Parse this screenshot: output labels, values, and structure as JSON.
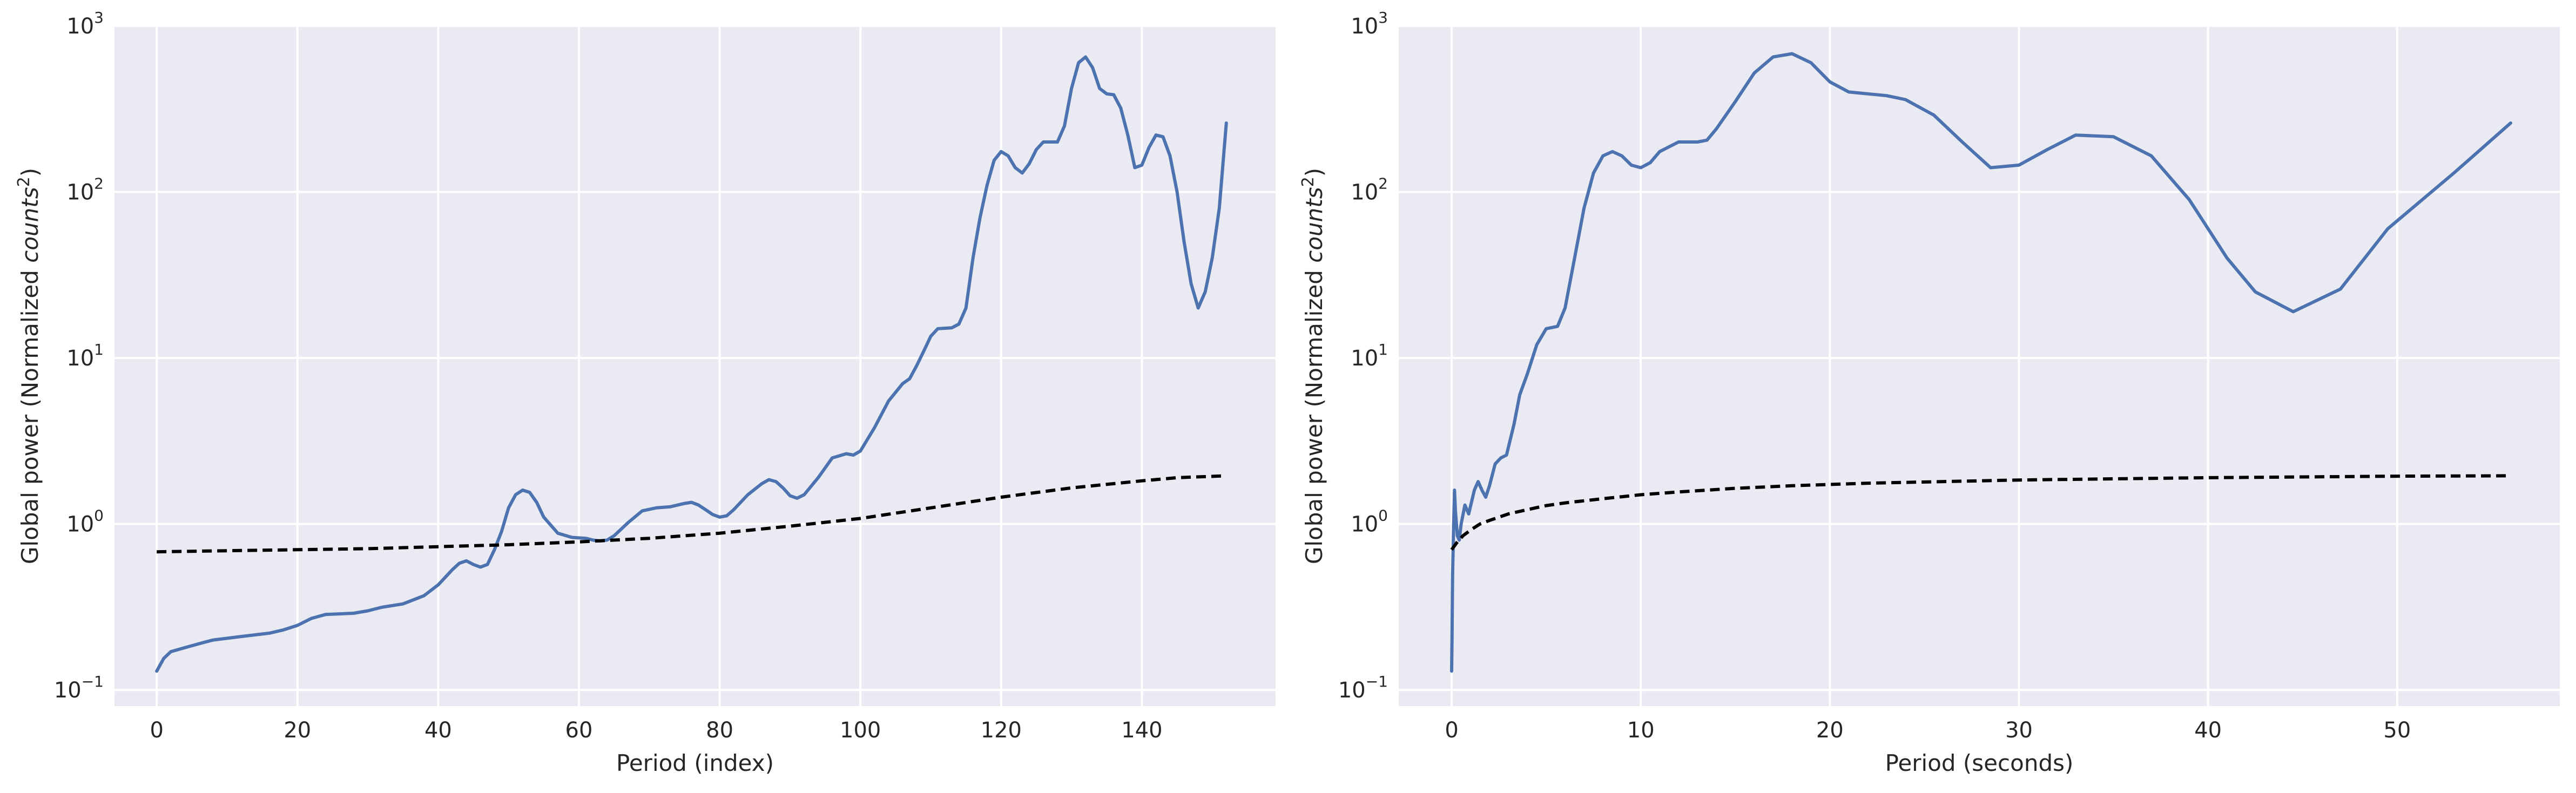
{
  "colors": {
    "axes_background": "#eaeaf2",
    "grid": "#ffffff",
    "series_power": "#4c72b0",
    "series_significance": "#000000"
  },
  "chart_data": [
    {
      "type": "line",
      "title": "",
      "xlabel": "Period (index)",
      "ylabel_prefix": "Global power (Normalized ",
      "ylabel_italic": "counts",
      "ylabel_sup": "2",
      "ylabel_suffix": ")",
      "xlim": [
        -6,
        159
      ],
      "ylim": [
        0.08,
        1000
      ],
      "yscale": "log",
      "grid": true,
      "xticks": [
        0,
        20,
        40,
        60,
        80,
        100,
        120,
        140
      ],
      "yticks": [
        {
          "value": 0.1,
          "base": "10",
          "exp": "−1"
        },
        {
          "value": 1,
          "base": "10",
          "exp": "0"
        },
        {
          "value": 10,
          "base": "10",
          "exp": "1"
        },
        {
          "value": 100,
          "base": "10",
          "exp": "2"
        },
        {
          "value": 1000,
          "base": "10",
          "exp": "3"
        }
      ],
      "series": [
        {
          "style": "solid",
          "color": "#4c72b0",
          "points": [
            [
              0,
              0.13
            ],
            [
              1,
              0.155
            ],
            [
              2,
              0.17
            ],
            [
              4,
              0.18
            ],
            [
              6,
              0.19
            ],
            [
              8,
              0.2
            ],
            [
              12,
              0.21
            ],
            [
              16,
              0.22
            ],
            [
              18,
              0.23
            ],
            [
              20,
              0.245
            ],
            [
              22,
              0.27
            ],
            [
              24,
              0.285
            ],
            [
              28,
              0.29
            ],
            [
              30,
              0.3
            ],
            [
              32,
              0.315
            ],
            [
              35,
              0.33
            ],
            [
              38,
              0.37
            ],
            [
              40,
              0.43
            ],
            [
              42,
              0.53
            ],
            [
              43,
              0.58
            ],
            [
              44,
              0.6
            ],
            [
              45,
              0.57
            ],
            [
              46,
              0.55
            ],
            [
              47,
              0.57
            ],
            [
              48,
              0.7
            ],
            [
              49,
              0.9
            ],
            [
              50,
              1.25
            ],
            [
              51,
              1.5
            ],
            [
              52,
              1.6
            ],
            [
              53,
              1.55
            ],
            [
              54,
              1.35
            ],
            [
              55,
              1.1
            ],
            [
              57,
              0.88
            ],
            [
              59,
              0.83
            ],
            [
              61,
              0.82
            ],
            [
              62,
              0.8
            ],
            [
              63,
              0.79
            ],
            [
              64,
              0.8
            ],
            [
              65,
              0.85
            ],
            [
              67,
              1.02
            ],
            [
              69,
              1.2
            ],
            [
              71,
              1.25
            ],
            [
              73,
              1.27
            ],
            [
              75,
              1.33
            ],
            [
              76,
              1.35
            ],
            [
              77,
              1.3
            ],
            [
              78,
              1.22
            ],
            [
              79,
              1.14
            ],
            [
              80,
              1.1
            ],
            [
              81,
              1.12
            ],
            [
              82,
              1.22
            ],
            [
              84,
              1.5
            ],
            [
              86,
              1.75
            ],
            [
              87,
              1.85
            ],
            [
              88,
              1.8
            ],
            [
              89,
              1.65
            ],
            [
              90,
              1.48
            ],
            [
              91,
              1.43
            ],
            [
              92,
              1.5
            ],
            [
              94,
              1.9
            ],
            [
              96,
              2.5
            ],
            [
              98,
              2.65
            ],
            [
              99,
              2.6
            ],
            [
              100,
              2.75
            ],
            [
              102,
              3.8
            ],
            [
              104,
              5.5
            ],
            [
              106,
              7.0
            ],
            [
              107,
              7.5
            ],
            [
              108,
              9.0
            ],
            [
              109,
              11.0
            ],
            [
              110,
              13.5
            ],
            [
              111,
              15.0
            ],
            [
              113,
              15.2
            ],
            [
              114,
              16.0
            ],
            [
              115,
              20.0
            ],
            [
              116,
              40.0
            ],
            [
              117,
              70.0
            ],
            [
              118,
              110.0
            ],
            [
              119,
              155.0
            ],
            [
              120,
              175.0
            ],
            [
              121,
              165.0
            ],
            [
              122,
              140.0
            ],
            [
              123,
              130.0
            ],
            [
              124,
              148.0
            ],
            [
              125,
              180.0
            ],
            [
              126,
              200.0
            ],
            [
              128,
              200.0
            ],
            [
              129,
              250.0
            ],
            [
              130,
              420.0
            ],
            [
              131,
              600.0
            ],
            [
              132,
              650.0
            ],
            [
              133,
              560.0
            ],
            [
              134,
              420.0
            ],
            [
              135,
              390.0
            ],
            [
              136,
              385.0
            ],
            [
              137,
              320.0
            ],
            [
              138,
              220.0
            ],
            [
              139,
              140.0
            ],
            [
              140,
              145.0
            ],
            [
              141,
              185.0
            ],
            [
              142,
              220.0
            ],
            [
              143,
              215.0
            ],
            [
              144,
              165.0
            ],
            [
              145,
              100.0
            ],
            [
              146,
              50.0
            ],
            [
              147,
              28.0
            ],
            [
              148,
              20.0
            ],
            [
              149,
              25.0
            ],
            [
              150,
              40.0
            ],
            [
              151,
              80.0
            ],
            [
              152,
              260.0
            ]
          ]
        },
        {
          "style": "dashed",
          "color": "#000000",
          "points": [
            [
              0,
              0.68
            ],
            [
              10,
              0.69
            ],
            [
              20,
              0.7
            ],
            [
              30,
              0.71
            ],
            [
              40,
              0.73
            ],
            [
              50,
              0.75
            ],
            [
              60,
              0.78
            ],
            [
              70,
              0.82
            ],
            [
              80,
              0.88
            ],
            [
              90,
              0.97
            ],
            [
              100,
              1.08
            ],
            [
              110,
              1.25
            ],
            [
              120,
              1.45
            ],
            [
              130,
              1.65
            ],
            [
              140,
              1.82
            ],
            [
              145,
              1.9
            ],
            [
              152,
              1.95
            ]
          ]
        }
      ]
    },
    {
      "type": "line",
      "title": "",
      "xlabel": "Period (seconds)",
      "ylabel_prefix": "Global power (Normalized ",
      "ylabel_italic": "counts",
      "ylabel_sup": "2",
      "ylabel_suffix": ")",
      "xlim": [
        -2.8,
        58.6
      ],
      "ylim": [
        0.08,
        1000
      ],
      "yscale": "log",
      "grid": true,
      "xticks": [
        0,
        10,
        20,
        30,
        40,
        50
      ],
      "yticks": [
        {
          "value": 0.1,
          "base": "10",
          "exp": "−1"
        },
        {
          "value": 1,
          "base": "10",
          "exp": "0"
        },
        {
          "value": 10,
          "base": "10",
          "exp": "1"
        },
        {
          "value": 100,
          "base": "10",
          "exp": "2"
        },
        {
          "value": 1000,
          "base": "10",
          "exp": "3"
        }
      ],
      "series": [
        {
          "style": "solid",
          "color": "#4c72b0",
          "points": [
            [
              0.0,
              0.13
            ],
            [
              0.02,
              0.2
            ],
            [
              0.05,
              0.5
            ],
            [
              0.1,
              0.9
            ],
            [
              0.15,
              1.6
            ],
            [
              0.2,
              1.2
            ],
            [
              0.3,
              0.85
            ],
            [
              0.4,
              0.8
            ],
            [
              0.5,
              1.0
            ],
            [
              0.7,
              1.3
            ],
            [
              0.9,
              1.15
            ],
            [
              1.2,
              1.6
            ],
            [
              1.4,
              1.8
            ],
            [
              1.6,
              1.6
            ],
            [
              1.8,
              1.45
            ],
            [
              2.0,
              1.7
            ],
            [
              2.3,
              2.3
            ],
            [
              2.6,
              2.5
            ],
            [
              2.9,
              2.6
            ],
            [
              3.3,
              4.0
            ],
            [
              3.6,
              6.0
            ],
            [
              4.0,
              8.0
            ],
            [
              4.5,
              12.0
            ],
            [
              5.0,
              15.0
            ],
            [
              5.6,
              15.5
            ],
            [
              6.0,
              20.0
            ],
            [
              6.5,
              40.0
            ],
            [
              7.0,
              80.0
            ],
            [
              7.5,
              130.0
            ],
            [
              8.0,
              165.0
            ],
            [
              8.5,
              175.0
            ],
            [
              9.0,
              165.0
            ],
            [
              9.5,
              145.0
            ],
            [
              10.0,
              140.0
            ],
            [
              10.5,
              150.0
            ],
            [
              11.0,
              175.0
            ],
            [
              12.0,
              200.0
            ],
            [
              13.0,
              200.0
            ],
            [
              13.5,
              205.0
            ],
            [
              14.0,
              240.0
            ],
            [
              15.0,
              350.0
            ],
            [
              16.0,
              520.0
            ],
            [
              17.0,
              650.0
            ],
            [
              18.0,
              680.0
            ],
            [
              19.0,
              600.0
            ],
            [
              20.0,
              460.0
            ],
            [
              21.0,
              400.0
            ],
            [
              22.0,
              390.0
            ],
            [
              23.0,
              380.0
            ],
            [
              24.0,
              360.0
            ],
            [
              25.5,
              290.0
            ],
            [
              27.0,
              200.0
            ],
            [
              28.5,
              140.0
            ],
            [
              30.0,
              145.0
            ],
            [
              31.5,
              180.0
            ],
            [
              33.0,
              220.0
            ],
            [
              35.0,
              215.0
            ],
            [
              37.0,
              165.0
            ],
            [
              39.0,
              90.0
            ],
            [
              41.0,
              40.0
            ],
            [
              42.5,
              25.0
            ],
            [
              44.5,
              19.0
            ],
            [
              47.0,
              26.0
            ],
            [
              49.5,
              60.0
            ],
            [
              53.0,
              130.0
            ],
            [
              56.0,
              260.0
            ]
          ]
        },
        {
          "style": "dashed",
          "color": "#000000",
          "points": [
            [
              0.0,
              0.7
            ],
            [
              0.3,
              0.78
            ],
            [
              0.6,
              0.85
            ],
            [
              1.0,
              0.92
            ],
            [
              1.5,
              1.0
            ],
            [
              2.0,
              1.05
            ],
            [
              3.0,
              1.15
            ],
            [
              4.0,
              1.22
            ],
            [
              5.0,
              1.29
            ],
            [
              6.0,
              1.34
            ],
            [
              8.0,
              1.42
            ],
            [
              10.0,
              1.5
            ],
            [
              12.0,
              1.56
            ],
            [
              15.0,
              1.64
            ],
            [
              18.0,
              1.7
            ],
            [
              22.0,
              1.76
            ],
            [
              26.0,
              1.8
            ],
            [
              30.0,
              1.84
            ],
            [
              35.0,
              1.87
            ],
            [
              40.0,
              1.9
            ],
            [
              45.0,
              1.92
            ],
            [
              50.0,
              1.94
            ],
            [
              56.0,
              1.95
            ]
          ]
        }
      ]
    }
  ]
}
